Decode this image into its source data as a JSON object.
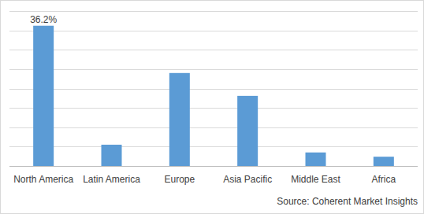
{
  "chart_data": {
    "type": "bar",
    "categories": [
      "North America",
      "Latin America",
      "Europe",
      "Asia Pacific",
      "Middle East",
      "Africa"
    ],
    "values": [
      36.2,
      5.5,
      24.0,
      18.1,
      3.5,
      2.4
    ],
    "value_labels": [
      "36.2%",
      null,
      null,
      null,
      null,
      null
    ],
    "data_labels": true,
    "color": "#5b9bd5",
    "ylim": [
      0,
      40
    ],
    "yticks": [
      0,
      5,
      10,
      15,
      20,
      25,
      30,
      35,
      40
    ],
    "grid": true,
    "tick_labels": "x",
    "source": "Source: Coherent Market Insights"
  }
}
